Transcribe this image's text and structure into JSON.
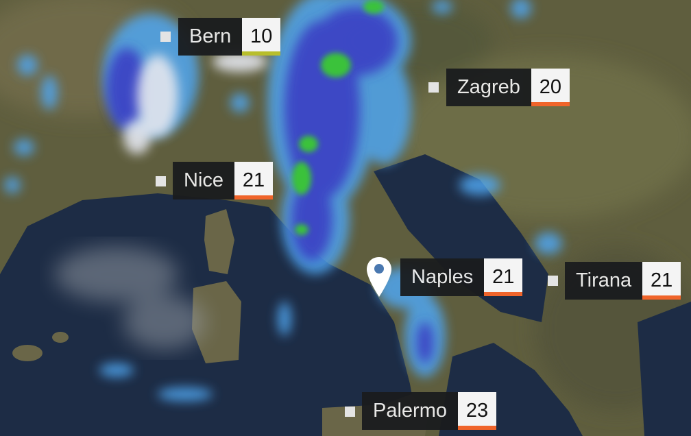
{
  "colors": {
    "land": "#5f5e3e",
    "sea": "#1d2c45",
    "underline_default": "#f0642a",
    "underline_cold": "#b8be2c",
    "label_bg": "#1a1c1e"
  },
  "cities": [
    {
      "name": "Bern",
      "temp": "10",
      "underline": "#b8be2c",
      "icon": "square-marker"
    },
    {
      "name": "Zagreb",
      "temp": "20",
      "underline": "#f0642a",
      "icon": "square-marker"
    },
    {
      "name": "Nice",
      "temp": "21",
      "underline": "#f0642a",
      "icon": "square-marker"
    },
    {
      "name": "Naples",
      "temp": "21",
      "underline": "#f0642a",
      "icon": "location-pin-icon"
    },
    {
      "name": "Tirana",
      "temp": "21",
      "underline": "#f0642a",
      "icon": "square-marker"
    },
    {
      "name": "Palermo",
      "temp": "23",
      "underline": "#f0642a",
      "icon": "square-marker"
    }
  ]
}
